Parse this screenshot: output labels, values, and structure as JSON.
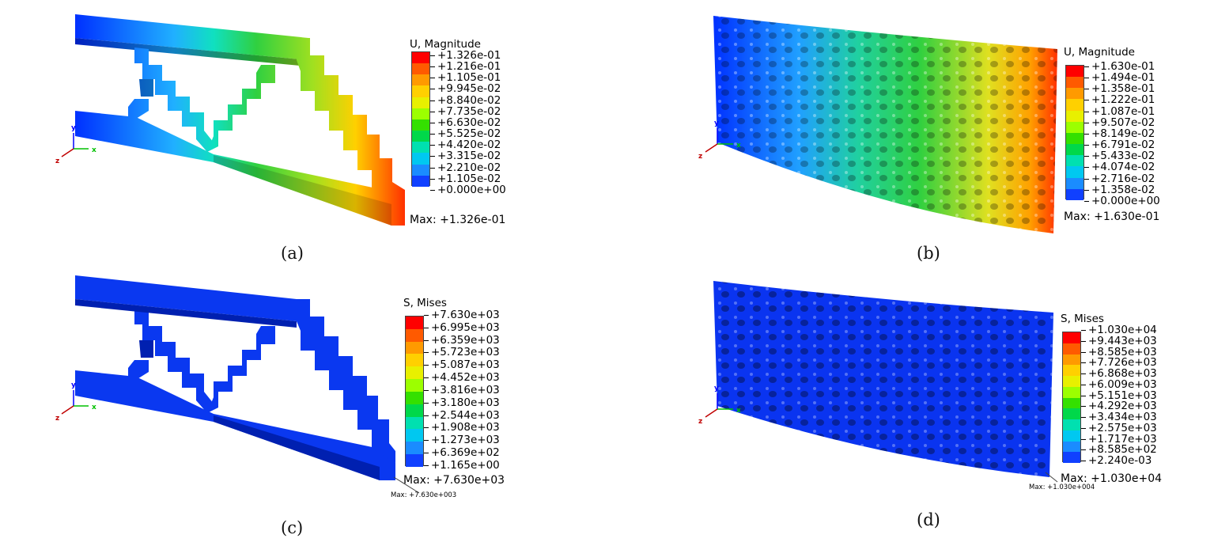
{
  "panels": [
    {
      "caption": "(a)",
      "legend_title": "U, Magnitude",
      "ticks": [
        "+1.326e-01",
        "+1.216e-01",
        "+1.105e-01",
        "+9.945e-02",
        "+8.840e-02",
        "+7.735e-02",
        "+6.630e-02",
        "+5.525e-02",
        "+4.420e-02",
        "+3.315e-02",
        "+2.210e-02",
        "+1.105e-02",
        "+0.000e+00"
      ],
      "max_label": "Max: +1.326e-01"
    },
    {
      "caption": "(b)",
      "legend_title": "U, Magnitude",
      "ticks": [
        "+1.630e-01",
        "+1.494e-01",
        "+1.358e-01",
        "+1.222e-01",
        "+1.087e-01",
        "+9.507e-02",
        "+8.149e-02",
        "+6.791e-02",
        "+5.433e-02",
        "+4.074e-02",
        "+2.716e-02",
        "+1.358e-02",
        "+0.000e+00"
      ],
      "max_label": "Max: +1.630e-01"
    },
    {
      "caption": "(c)",
      "legend_title": "S, Mises",
      "ticks": [
        "+7.630e+03",
        "+6.995e+03",
        "+6.359e+03",
        "+5.723e+03",
        "+5.087e+03",
        "+4.452e+03",
        "+3.816e+03",
        "+3.180e+03",
        "+2.544e+03",
        "+1.908e+03",
        "+1.273e+03",
        "+6.369e+02",
        "+1.165e+00"
      ],
      "max_label": "Max: +7.630e+03",
      "small_max": "Max: +7.630e+003"
    },
    {
      "caption": "(d)",
      "legend_title": "S, Mises",
      "ticks": [
        "+1.030e+04",
        "+9.443e+03",
        "+8.585e+03",
        "+7.726e+03",
        "+6.868e+03",
        "+6.009e+03",
        "+5.151e+03",
        "+4.292e+03",
        "+3.434e+03",
        "+2.575e+03",
        "+1.717e+03",
        "+8.585e+02",
        "+2.240e-03"
      ],
      "max_label": "Max: +1.030e+04",
      "small_max": "Max: +1.030e+004"
    }
  ],
  "colormap": [
    "#ff0000",
    "#ff5a00",
    "#ff9a00",
    "#ffd000",
    "#e8f000",
    "#9cff00",
    "#34e000",
    "#00d84a",
    "#00e0b0",
    "#00c8f0",
    "#1a8cff",
    "#1040ff",
    "#0020ff"
  ],
  "axis_labels": {
    "x": "x",
    "y": "y",
    "z": "z"
  },
  "axis_colors": {
    "x": "#00c000",
    "y": "#0000ff",
    "z": "#c00000"
  }
}
